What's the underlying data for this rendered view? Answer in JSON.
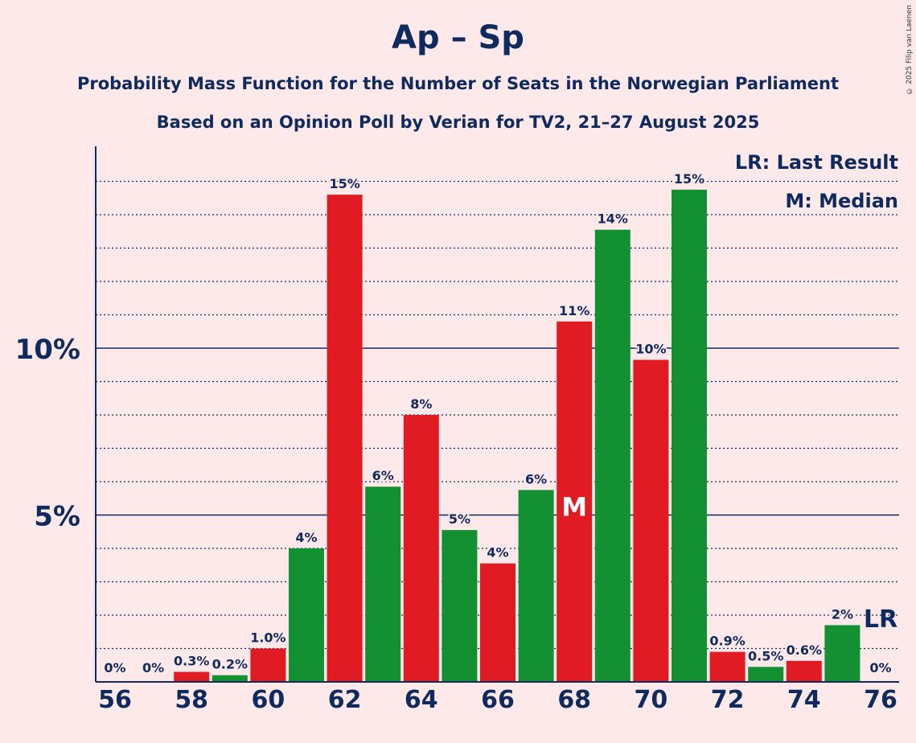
{
  "header": {
    "title": "Ap – Sp",
    "subtitle_line1": "Probability Mass Function for the Number of Seats in the Norwegian Parliament",
    "subtitle_line2": "Based on an Opinion Poll by Verian for TV2, 21–27 August 2025",
    "copyright": "© 2025 Filip van Laenen"
  },
  "colors": {
    "red": "#e11b24",
    "green": "#129032",
    "navy": "#0f2a5e",
    "background": "#fde8ea"
  },
  "chart_data": {
    "type": "bar",
    "title": "Ap – Sp",
    "xlabel": "",
    "ylabel": "",
    "ylim": [
      0,
      16
    ],
    "y_ticks": [
      {
        "value": 5,
        "label": "5%"
      },
      {
        "value": 10,
        "label": "10%"
      }
    ],
    "x_tick_labels": [
      "56",
      "58",
      "60",
      "62",
      "64",
      "66",
      "68",
      "70",
      "72",
      "74",
      "76"
    ],
    "seats": [
      56,
      57,
      58,
      59,
      60,
      61,
      62,
      63,
      64,
      65,
      66,
      67,
      68,
      69,
      70,
      71,
      72,
      73,
      74,
      75,
      76
    ],
    "values": [
      0,
      0,
      0.3,
      0.2,
      1.0,
      4.0,
      14.6,
      5.85,
      8.0,
      4.55,
      3.55,
      5.75,
      10.8,
      13.55,
      9.65,
      14.75,
      0.9,
      0.45,
      0.63,
      1.7,
      0
    ],
    "labels": [
      "0%",
      "0%",
      "0.3%",
      "0.2%",
      "1.0%",
      "4%",
      "15%",
      "6%",
      "8%",
      "5%",
      "4%",
      "6%",
      "11%",
      "14%",
      "10%",
      "15%",
      "0.9%",
      "0.5%",
      "0.6%",
      "2%",
      "0%"
    ],
    "bar_colors": [
      "red",
      "green",
      "red",
      "green",
      "red",
      "green",
      "red",
      "green",
      "red",
      "green",
      "red",
      "green",
      "red",
      "green",
      "red",
      "green",
      "red",
      "green",
      "red",
      "green",
      "red"
    ],
    "median_seat": 68,
    "median_marker": "M",
    "last_result_seat": 76,
    "last_result_marker": "LR",
    "legend": [
      "LR: Last Result",
      "M: Median"
    ],
    "legend_position": "top-right",
    "grid": true
  }
}
